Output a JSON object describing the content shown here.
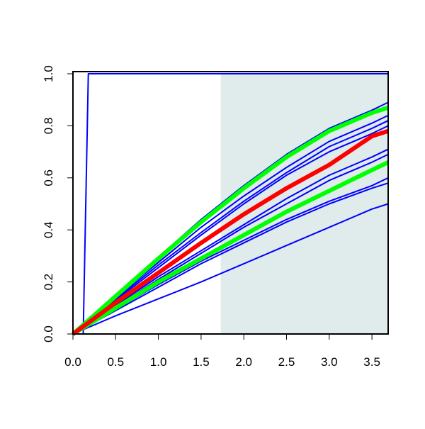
{
  "chart_data": {
    "type": "line",
    "x": [
      0,
      0.5,
      1,
      1.5,
      2,
      2.5,
      3,
      3.5,
      3.69
    ],
    "xlim": [
      0,
      3.69
    ],
    "ylim": [
      0,
      1
    ],
    "xticks": [
      {
        "value": 0,
        "label": "0.0"
      },
      {
        "value": 0.5,
        "label": "0.5"
      },
      {
        "value": 1,
        "label": "1.0"
      },
      {
        "value": 1.5,
        "label": "1.5"
      },
      {
        "value": 2,
        "label": "2.0"
      },
      {
        "value": 2.5,
        "label": "2.5"
      },
      {
        "value": 3,
        "label": "3.0"
      },
      {
        "value": 3.5,
        "label": "3.5"
      }
    ],
    "yticks": [
      {
        "value": 0,
        "label": "0.0"
      },
      {
        "value": 0.2,
        "label": "0.2"
      },
      {
        "value": 0.4,
        "label": "0.4"
      },
      {
        "value": 0.6,
        "label": "0.6"
      },
      {
        "value": 0.8,
        "label": "0.8"
      },
      {
        "value": 1,
        "label": "1.0"
      }
    ],
    "shaded_region": {
      "xlim": [
        1.73,
        3.69
      ],
      "color": "#e0ebeb"
    },
    "series": [
      {
        "color": "#0000ff",
        "linewidth": 2,
        "x": [
          0.12,
          0.18,
          3.69
        ],
        "values": [
          0,
          1,
          1
        ]
      },
      {
        "color": "#0000ff",
        "linewidth": 2,
        "values": [
          0,
          0.15,
          0.295,
          0.44,
          0.57,
          0.69,
          0.79,
          0.86,
          0.89
        ]
      },
      {
        "color": "#0000ff",
        "linewidth": 2,
        "values": [
          0,
          0.14,
          0.275,
          0.41,
          0.53,
          0.64,
          0.74,
          0.81,
          0.84
        ]
      },
      {
        "color": "#0000ff",
        "linewidth": 2,
        "values": [
          0,
          0.135,
          0.265,
          0.39,
          0.51,
          0.62,
          0.72,
          0.79,
          0.82
        ]
      },
      {
        "color": "#0000ff",
        "linewidth": 2,
        "values": [
          0,
          0.13,
          0.255,
          0.38,
          0.5,
          0.61,
          0.7,
          0.77,
          0.8
        ]
      },
      {
        "color": "#0000ff",
        "linewidth": 2,
        "values": [
          0,
          0.11,
          0.22,
          0.32,
          0.42,
          0.52,
          0.61,
          0.68,
          0.71
        ]
      },
      {
        "color": "#0000ff",
        "linewidth": 2,
        "values": [
          0,
          0.105,
          0.21,
          0.31,
          0.41,
          0.5,
          0.59,
          0.66,
          0.69
        ]
      },
      {
        "color": "#0000ff",
        "linewidth": 2,
        "values": [
          0,
          0.095,
          0.19,
          0.28,
          0.36,
          0.44,
          0.51,
          0.57,
          0.6
        ]
      },
      {
        "color": "#0000ff",
        "linewidth": 2,
        "values": [
          0,
          0.09,
          0.18,
          0.27,
          0.35,
          0.43,
          0.5,
          0.56,
          0.58
        ]
      },
      {
        "color": "#0000ff",
        "linewidth": 2,
        "values": [
          0,
          0.07,
          0.135,
          0.2,
          0.27,
          0.34,
          0.41,
          0.48,
          0.5
        ]
      },
      {
        "color": "#00ff00",
        "linewidth": 6,
        "values": [
          0,
          0.145,
          0.29,
          0.43,
          0.56,
          0.68,
          0.78,
          0.85,
          0.87
        ]
      },
      {
        "color": "#00ff00",
        "linewidth": 6,
        "values": [
          0,
          0.1,
          0.2,
          0.29,
          0.38,
          0.47,
          0.55,
          0.63,
          0.66
        ]
      },
      {
        "color": "#ff0000",
        "linewidth": 6,
        "values": [
          0,
          0.12,
          0.235,
          0.35,
          0.46,
          0.56,
          0.65,
          0.76,
          0.78
        ]
      }
    ]
  }
}
